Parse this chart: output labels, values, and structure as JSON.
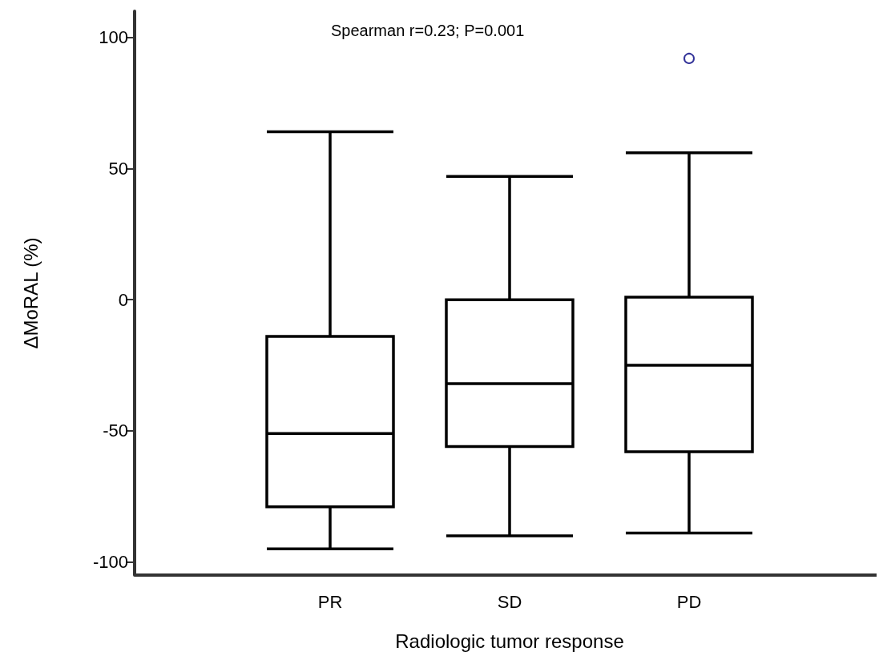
{
  "chart_data": {
    "type": "box",
    "xlabel": "Radiologic tumor response",
    "ylabel": "ΔMoRAL (%)",
    "annotations": [
      "Spearman r=0.23; P=0.001"
    ],
    "categories": [
      "PR",
      "SD",
      "PD"
    ],
    "ylim": [
      -105,
      110
    ],
    "yticks": [
      -100,
      -50,
      0,
      50,
      100
    ],
    "grid": false,
    "series": [
      {
        "color": "#000000",
        "boxes": [
          {
            "low": -95,
            "q1": -79,
            "median": -51,
            "q3": -14,
            "high": 64
          },
          {
            "low": -90,
            "q1": -56,
            "median": -32,
            "q3": 0,
            "high": 47
          },
          {
            "low": -89,
            "q1": -58,
            "median": -25,
            "q3": 1,
            "high": 56
          }
        ]
      },
      {
        "type": "scatter",
        "color": "#000080",
        "marker": "circle",
        "x": [
          "PD"
        ],
        "values": [
          92
        ]
      }
    ]
  }
}
